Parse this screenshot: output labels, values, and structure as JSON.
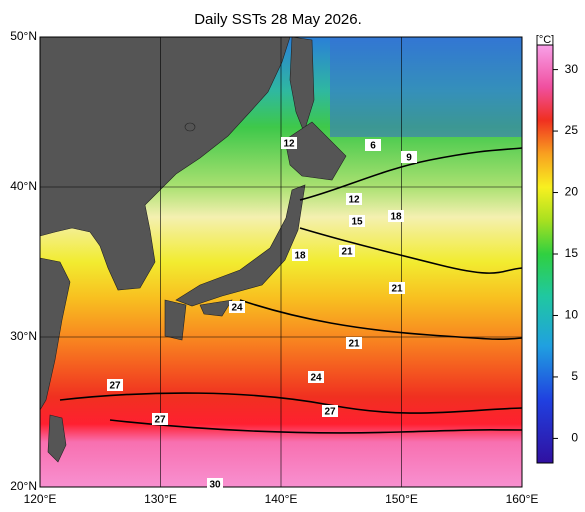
{
  "title": "Daily SSTs 28 May 2026.",
  "lat_labels": [
    {
      "value": 50,
      "label": "50°N"
    },
    {
      "value": 40,
      "label": "40°N"
    },
    {
      "value": 30,
      "label": "30°N"
    },
    {
      "value": 20,
      "label": "20°N"
    }
  ],
  "lon_labels": [
    {
      "value": 120,
      "label": "120°E"
    },
    {
      "value": 130,
      "label": "130°E"
    },
    {
      "value": 140,
      "label": "140°E"
    },
    {
      "value": 150,
      "label": "150°E"
    },
    {
      "value": 160,
      "label": "160°E"
    }
  ],
  "colorbar": {
    "unit": "[°C]",
    "lim": [
      -2,
      32
    ],
    "ticks": [
      0,
      5,
      10,
      15,
      20,
      25,
      30
    ]
  },
  "contour_labels": [
    12,
    6,
    9,
    12,
    15,
    18,
    18,
    21,
    21,
    24,
    21,
    27,
    24,
    27,
    27,
    30
  ]
}
